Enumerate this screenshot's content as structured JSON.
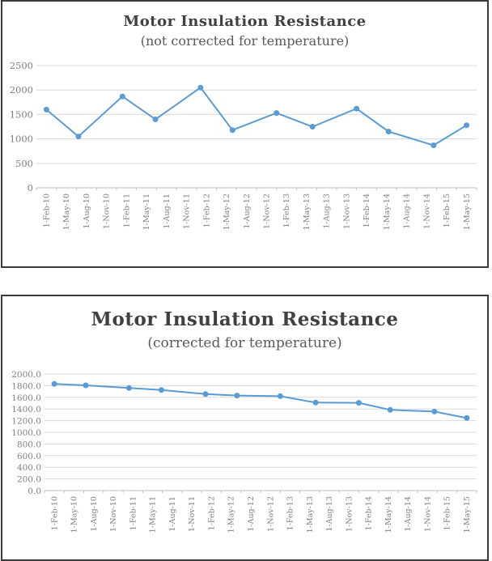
{
  "accent_color": "#5b9bd5",
  "grid_color": "#d9d9d9",
  "axis_color": "#bfbfbf",
  "title_color": "#404040",
  "chart_data": [
    {
      "type": "line",
      "title": "Motor Insulation Resistance",
      "subtitle": "(not corrected for temperature)",
      "legend": "none",
      "grid": "horizontal",
      "categories": [
        "1-Feb-10",
        "1-May-10",
        "1-Aug-10",
        "1-Nov-10",
        "1-Feb-11",
        "1-May-11",
        "1-Aug-11",
        "1-Nov-11",
        "1-Feb-12",
        "1-May-12",
        "1-Aug-12",
        "1-Nov-12",
        "1-Feb-13",
        "1-May-13",
        "1-Aug-13",
        "1-Nov-13",
        "1-Feb-14",
        "1-May-14",
        "1-Aug-14",
        "1-Nov-14",
        "1-Feb-15",
        "1-May-15"
      ],
      "y_tick_labels": [
        "2500",
        "2000",
        "1500",
        "1000",
        "500",
        "0"
      ],
      "ylim": [
        0,
        2500
      ],
      "y_step": 500,
      "points": [
        {
          "x_index": 0,
          "value": 1600
        },
        {
          "x_index": 1.6,
          "value": 1050
        },
        {
          "x_index": 3.8,
          "value": 1870
        },
        {
          "x_index": 5.45,
          "value": 1400
        },
        {
          "x_index": 7.7,
          "value": 2050
        },
        {
          "x_index": 9.3,
          "value": 1180
        },
        {
          "x_index": 11.5,
          "value": 1530
        },
        {
          "x_index": 13.3,
          "value": 1250
        },
        {
          "x_index": 15.5,
          "value": 1620
        },
        {
          "x_index": 17.1,
          "value": 1150
        },
        {
          "x_index": 19.35,
          "value": 870
        },
        {
          "x_index": 21,
          "value": 1280
        }
      ]
    },
    {
      "type": "line",
      "title": "Motor Insulation Resistance",
      "subtitle": "(corrected for temperature)",
      "legend": "none",
      "grid": "horizontal",
      "categories": [
        "1-Feb-10",
        "1-May-10",
        "1-Aug-10",
        "1-Nov-10",
        "1-Feb-11",
        "1-May-11",
        "1-Aug-11",
        "1-Nov-11",
        "1-Feb-12",
        "1-May-12",
        "1-Aug-12",
        "1-Nov-12",
        "1-Feb-13",
        "1-May-13",
        "1-Aug-13",
        "1-Nov-13",
        "1-Feb-14",
        "1-May-14",
        "1-Aug-14",
        "1-Nov-14",
        "1-Feb-15",
        "1-May-15"
      ],
      "y_tick_labels": [
        "2000.0",
        "1800.0",
        "1600.0",
        "1400.0",
        "1200.0",
        "1000.0",
        "800.0",
        "600.0",
        "400.0",
        "200.0",
        "0.0"
      ],
      "ylim": [
        0,
        2000
      ],
      "y_step": 200,
      "points": [
        {
          "x_index": 0,
          "value": 1830
        },
        {
          "x_index": 1.6,
          "value": 1805
        },
        {
          "x_index": 3.8,
          "value": 1760
        },
        {
          "x_index": 5.45,
          "value": 1725
        },
        {
          "x_index": 7.7,
          "value": 1655
        },
        {
          "x_index": 9.3,
          "value": 1630
        },
        {
          "x_index": 11.5,
          "value": 1620
        },
        {
          "x_index": 13.3,
          "value": 1510
        },
        {
          "x_index": 15.5,
          "value": 1505
        },
        {
          "x_index": 17.1,
          "value": 1385
        },
        {
          "x_index": 19.35,
          "value": 1355
        },
        {
          "x_index": 21,
          "value": 1245
        }
      ]
    }
  ]
}
